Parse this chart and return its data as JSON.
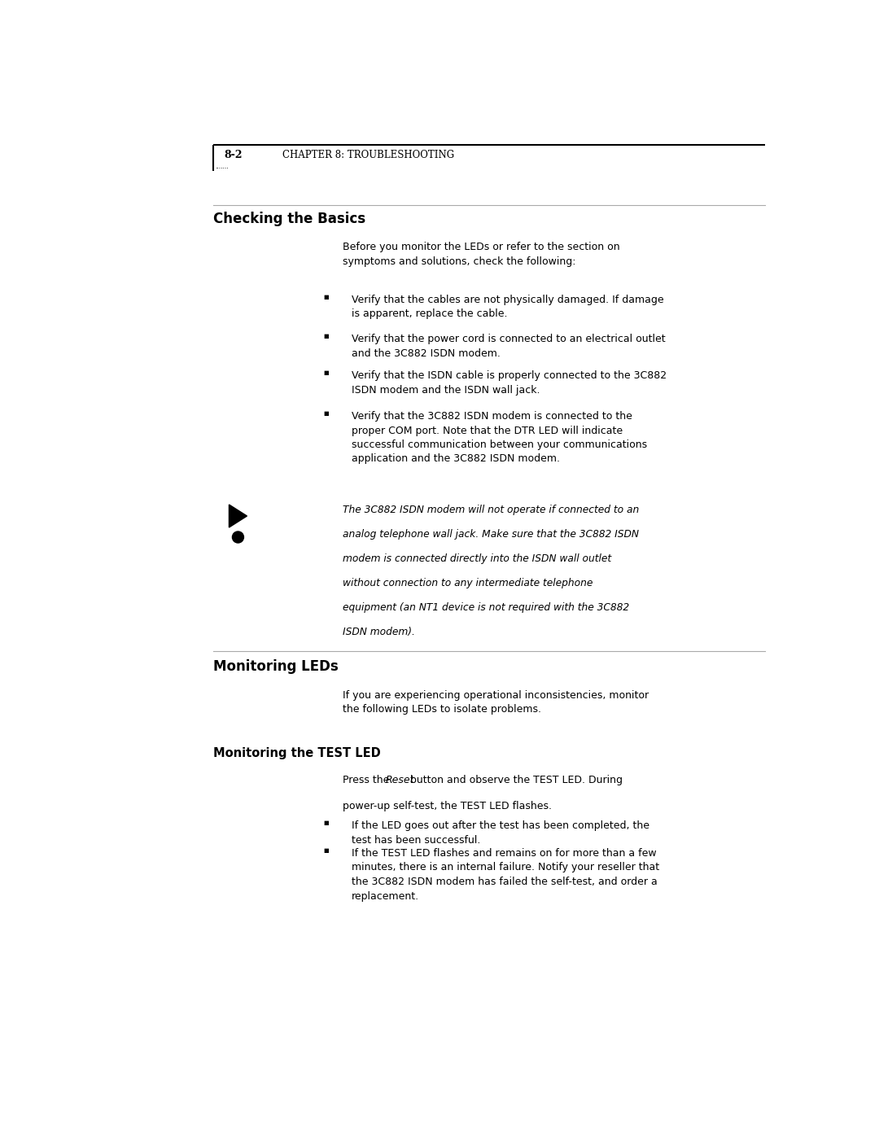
{
  "bg_color": "#ffffff",
  "page_width": 10.8,
  "page_height": 13.97,
  "header_page_num": "8-2",
  "header_chapter": "CHAPTER 8: TROUBLESHOOTING",
  "section1_title": "Checking the Basics",
  "section1_intro": "Before you monitor the LEDs or refer to the section on\nsymptoms and solutions, check the following:",
  "section1_bullets": [
    "Verify that the cables are not physically damaged. If damage\nis apparent, replace the cable.",
    "Verify that the power cord is connected to an electrical outlet\nand the 3C882 ISDN modem.",
    "Verify that the ISDN cable is properly connected to the 3C882\nISDN modem and the ISDN wall jack.",
    "Verify that the 3C882 ISDN modem is connected to the\nproper COM port. Note that the DTR LED will indicate\nsuccessful communication between your communications\napplication and the 3C882 ISDN modem."
  ],
  "note_lines": [
    "The 3C882 ISDN modem will not operate if connected to an",
    "analog telephone wall jack. Make sure that the 3C882 ISDN",
    "modem is connected directly into the ISDN wall outlet",
    "without connection to any intermediate telephone",
    "equipment (an NT1 device is not required with the 3C882",
    "ISDN modem)."
  ],
  "section2_title": "Monitoring LEDs",
  "section2_intro": "If you are experiencing operational inconsistencies, monitor\nthe following LEDs to isolate problems.",
  "section3_title": "Monitoring the TEST LED",
  "section3_intro_pre": "Press the ",
  "section3_intro_italic": "Reset",
  "section3_intro_post": " button and observe the TEST LED. During\npower-up self-test, the TEST LED flashes.",
  "section3_bullets": [
    "If the LED goes out after the test has been completed, the\ntest has been successful.",
    "If the TEST LED flashes and remains on for more than a few\nminutes, there is an internal failure. Notify your reseller that\nthe 3C882 ISDN modem has failed the self-test, and order a\nreplacement."
  ],
  "text_color": "#000000",
  "line_color": "#888888",
  "header_line_color": "#000000",
  "L": 0.243,
  "CL": 0.39,
  "BL": 0.368,
  "BULL_TEXT": 0.4,
  "font_body": 9.0,
  "font_title1": 12.0,
  "font_title2": 10.5,
  "font_header": 9.0,
  "font_note": 8.8
}
